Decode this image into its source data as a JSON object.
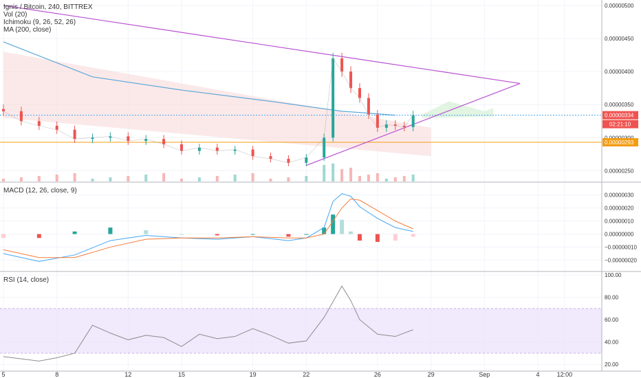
{
  "header": {
    "title": "Ignis / Bitcoin, 240, BITTREX",
    "indicators": [
      "Vol (20)",
      "Ichimoku (9, 26, 52, 26)",
      "MA (200, close)"
    ]
  },
  "chart_data": [
    {
      "type": "line",
      "panel": "price",
      "title": "Ignis / Bitcoin, 240, BITTREX",
      "yaxis_ticks": [
        "0.00000500",
        "0.00000450",
        "0.00000400",
        "0.00000350",
        "0.00000300",
        "0.00000250"
      ],
      "ylim": [
        2.4e-06,
        5e-06
      ],
      "price_labels": [
        {
          "value": "0.00000334",
          "color": "#ef5350",
          "time": "02:21:10"
        },
        {
          "value": "0.00000293",
          "color": "#f39c12"
        }
      ],
      "close_series": {
        "name": "Price (close)",
        "x": [
          "Aug 5",
          "Aug 6",
          "Aug 7",
          "Aug 8",
          "Aug 9",
          "Aug 10",
          "Aug 11",
          "Aug 12",
          "Aug 13",
          "Aug 14",
          "Aug 15",
          "Aug 16",
          "Aug 17",
          "Aug 18",
          "Aug 19",
          "Aug 20",
          "Aug 21",
          "Aug 22",
          "Aug 23",
          "Aug 23.5",
          "Aug 24",
          "Aug 24.5",
          "Aug 25",
          "Aug 25.5",
          "Aug 26",
          "Aug 26.5",
          "Aug 27",
          "Aug 27.5",
          "Aug 28"
        ],
        "values": [
          3.4e-06,
          3.25e-06,
          3.18e-06,
          3.12e-06,
          2.98e-06,
          3e-06,
          3.02e-06,
          2.95e-06,
          2.98e-06,
          2.9e-06,
          2.8e-06,
          2.85e-06,
          2.8e-06,
          2.82e-06,
          2.72e-06,
          2.68e-06,
          2.62e-06,
          2.7e-06,
          3e-06,
          4.2e-06,
          4e-06,
          3.75e-06,
          3.6e-06,
          3.35e-06,
          3.15e-06,
          3.2e-06,
          3.18e-06,
          3.16e-06,
          3.34e-06
        ]
      },
      "ma200": {
        "name": "MA (200, close)",
        "x": [
          "Aug 5",
          "Aug 10",
          "Aug 15",
          "Aug 20",
          "Aug 24",
          "Aug 27"
        ],
        "values": [
          4.45e-06,
          3.92e-06,
          3.72e-06,
          3.55e-06,
          3.4e-06,
          3.34e-06
        ]
      },
      "trendlines": [
        {
          "from": [
            "Aug 5",
            5e-06
          ],
          "to": [
            "Sep 3",
            3.82e-06
          ]
        },
        {
          "from": [
            "Aug 22",
            2.58e-06
          ],
          "to": [
            "Sep 3",
            3.82e-06
          ]
        }
      ]
    },
    {
      "type": "line",
      "panel": "macd",
      "title": "MACD (12, 26, close, 9)",
      "yaxis_ticks": [
        "0.00000030",
        "0.00000020",
        "0.00000010",
        "0.00000000",
        "−0.00000010",
        "−0.00000020"
      ],
      "ylim": [
        -2.5e-07,
        3.3e-07
      ],
      "x": [
        "Aug 5",
        "Aug 7",
        "Aug 9",
        "Aug 11",
        "Aug 13",
        "Aug 15",
        "Aug 17",
        "Aug 19",
        "Aug 21",
        "Aug 22",
        "Aug 23",
        "Aug 23.5",
        "Aug 24",
        "Aug 24.5",
        "Aug 25",
        "Aug 26",
        "Aug 27",
        "Aug 28"
      ],
      "series": [
        {
          "name": "MACD",
          "values": [
            -1.5e-07,
            -2.1e-07,
            -1.6e-07,
            -5e-08,
            -1e-08,
            -3e-08,
            -4e-08,
            -2e-08,
            -5e-08,
            -3e-08,
            5e-08,
            2.5e-07,
            3.1e-07,
            2.9e-07,
            2.1e-07,
            1.2e-07,
            5e-08,
            2e-08
          ]
        },
        {
          "name": "Signal",
          "values": [
            -1.2e-07,
            -1.8e-07,
            -1.8e-07,
            -1e-07,
            -4e-08,
            -3e-08,
            -3e-08,
            -2e-08,
            -3e-08,
            -3e-08,
            0.0,
            1e-07,
            2e-07,
            2.7e-07,
            2.6e-07,
            1.8e-07,
            1e-07,
            4e-08
          ]
        },
        {
          "name": "Histogram",
          "values": [
            -3e-08,
            -3e-08,
            2e-08,
            5e-08,
            3e-08,
            0.0,
            -1e-08,
            0.0,
            -2e-08,
            0.0,
            5e-08,
            1.5e-07,
            1.1e-07,
            2e-08,
            -5e-08,
            -6e-08,
            -5e-08,
            -2e-08
          ]
        }
      ]
    },
    {
      "type": "line",
      "panel": "rsi",
      "title": "RSI (14, close)",
      "yaxis_ticks": [
        "100.00",
        "80.00",
        "60.00",
        "40.00",
        "20.00"
      ],
      "ylim": [
        14,
        100
      ],
      "band": [
        30,
        70
      ],
      "x": [
        "Aug 5",
        "Aug 6",
        "Aug 7",
        "Aug 8",
        "Aug 9",
        "Aug 10",
        "Aug 11",
        "Aug 12",
        "Aug 13",
        "Aug 14",
        "Aug 15",
        "Aug 16",
        "Aug 17",
        "Aug 18",
        "Aug 19",
        "Aug 20",
        "Aug 21",
        "Aug 22",
        "Aug 23",
        "Aug 24",
        "Aug 24.5",
        "Aug 25",
        "Aug 26",
        "Aug 27",
        "Aug 28"
      ],
      "series": [
        {
          "name": "RSI",
          "values": [
            27,
            25,
            23,
            26,
            30,
            55,
            48,
            42,
            46,
            44,
            36,
            47,
            43,
            45,
            52,
            46,
            39,
            41,
            62,
            90,
            77,
            60,
            47,
            45,
            51
          ]
        }
      ]
    }
  ],
  "xaxis_labels": [
    "5",
    "8",
    "12",
    "15",
    "19",
    "22",
    "26",
    "29",
    "Sep",
    "4",
    "12:00"
  ]
}
